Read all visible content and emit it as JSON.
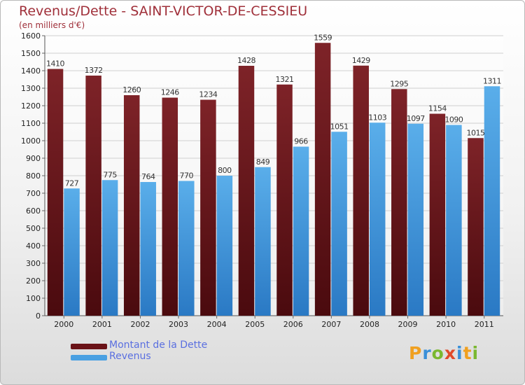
{
  "title": "Revenus/Dette - SAINT-VICTOR-DE-CESSIEU",
  "subtitle": "(en milliers d'€)",
  "logo_text": "Proxiti",
  "colors": {
    "debt": "#7a1e24",
    "debt_dark": "#4a0a0e",
    "revenue": "#55a8e6",
    "revenue_dark": "#2a79c4",
    "title": "#a0303a",
    "legend_text": "#5a6fe0"
  },
  "chart_data": {
    "type": "bar",
    "title": "Revenus/Dette - SAINT-VICTOR-DE-CESSIEU",
    "subtitle": "(en milliers d'€)",
    "categories": [
      "2000",
      "2001",
      "2002",
      "2003",
      "2004",
      "2005",
      "2006",
      "2007",
      "2008",
      "2009",
      "2010",
      "2011"
    ],
    "series": [
      {
        "name": "Montant de la Dette",
        "values": [
          1410,
          1372,
          1260,
          1246,
          1234,
          1428,
          1321,
          1559,
          1429,
          1295,
          1154,
          1015
        ]
      },
      {
        "name": "Revenus",
        "values": [
          727,
          775,
          764,
          770,
          800,
          849,
          966,
          1051,
          1103,
          1097,
          1090,
          1311
        ]
      }
    ],
    "ylim": [
      0,
      1600
    ],
    "yticks": [
      0,
      100,
      200,
      300,
      400,
      500,
      600,
      700,
      800,
      900,
      1000,
      1100,
      1200,
      1300,
      1400,
      1500,
      1600
    ],
    "grid": true,
    "legend_position": "bottom-left",
    "data_labels": true
  }
}
